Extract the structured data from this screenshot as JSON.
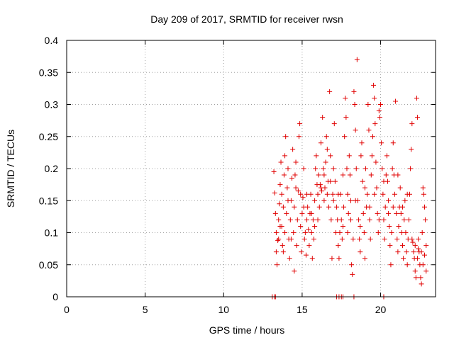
{
  "chart_data": {
    "type": "scatter",
    "title": "Day 209 of 2017, SRMTID for receiver rwsn",
    "xlabel": "GPS time / hours",
    "ylabel": "SRMTID / TECUs",
    "xlim": [
      0,
      23.5
    ],
    "ylim": [
      0,
      0.4
    ],
    "xticks": [
      "0",
      "5",
      "10",
      "15",
      "20"
    ],
    "xtick_values": [
      0,
      5,
      10,
      15,
      20
    ],
    "yticks": [
      "0",
      "0.05",
      "0.1",
      "0.15",
      "0.2",
      "0.25",
      "0.3",
      "0.35",
      "0.4"
    ],
    "ytick_values": [
      0,
      0.05,
      0.1,
      0.15,
      0.2,
      0.25,
      0.3,
      0.35,
      0.4
    ],
    "grid": true,
    "marker": "+",
    "color": "#e00000",
    "series": [
      {
        "name": "SRMTID",
        "points": [
          [
            13.1,
            0.0
          ],
          [
            13.25,
            0.0
          ],
          [
            13.3,
            0.0
          ],
          [
            17.2,
            0.0
          ],
          [
            17.35,
            0.0
          ],
          [
            17.5,
            0.0
          ],
          [
            17.6,
            0.0
          ],
          [
            18.3,
            0.0
          ],
          [
            20.2,
            0.0
          ],
          [
            13.2,
            0.195
          ],
          [
            13.25,
            0.162
          ],
          [
            13.3,
            0.13
          ],
          [
            13.35,
            0.1
          ],
          [
            13.35,
            0.07
          ],
          [
            13.4,
            0.05
          ],
          [
            13.45,
            0.088
          ],
          [
            13.5,
            0.12
          ],
          [
            13.55,
            0.145
          ],
          [
            13.6,
            0.175
          ],
          [
            13.65,
            0.21
          ],
          [
            13.7,
            0.16
          ],
          [
            13.7,
            0.11
          ],
          [
            13.75,
            0.08
          ],
          [
            13.8,
            0.14
          ],
          [
            13.85,
            0.19
          ],
          [
            13.9,
            0.22
          ],
          [
            13.95,
            0.25
          ],
          [
            13.9,
            0.1
          ],
          [
            14.0,
            0.13
          ],
          [
            14.05,
            0.17
          ],
          [
            14.1,
            0.2
          ],
          [
            14.15,
            0.09
          ],
          [
            14.2,
            0.06
          ],
          [
            14.25,
            0.12
          ],
          [
            14.3,
            0.15
          ],
          [
            14.35,
            0.185
          ],
          [
            14.4,
            0.23
          ],
          [
            14.45,
            0.1
          ],
          [
            14.5,
            0.04
          ],
          [
            14.5,
            0.14
          ],
          [
            14.55,
            0.19
          ],
          [
            14.6,
            0.21
          ],
          [
            14.65,
            0.08
          ],
          [
            14.7,
            0.12
          ],
          [
            14.75,
            0.165
          ],
          [
            14.8,
            0.25
          ],
          [
            14.85,
            0.27
          ],
          [
            14.9,
            0.11
          ],
          [
            14.95,
            0.07
          ],
          [
            15.0,
            0.13
          ],
          [
            15.05,
            0.155
          ],
          [
            15.1,
            0.2
          ],
          [
            15.15,
            0.09
          ],
          [
            15.2,
            0.1
          ],
          [
            15.25,
            0.065
          ],
          [
            15.3,
            0.12
          ],
          [
            15.35,
            0.14
          ],
          [
            15.4,
            0.105
          ],
          [
            15.45,
            0.08
          ],
          [
            15.5,
            0.13
          ],
          [
            15.55,
            0.16
          ],
          [
            15.6,
            0.1
          ],
          [
            15.65,
            0.06
          ],
          [
            15.7,
            0.12
          ],
          [
            15.75,
            0.09
          ],
          [
            15.8,
            0.15
          ],
          [
            15.85,
            0.2
          ],
          [
            15.9,
            0.22
          ],
          [
            15.95,
            0.175
          ],
          [
            16.0,
            0.16
          ],
          [
            16.05,
            0.19
          ],
          [
            16.1,
            0.14
          ],
          [
            16.15,
            0.175
          ],
          [
            16.2,
            0.24
          ],
          [
            16.25,
            0.165
          ],
          [
            16.3,
            0.28
          ],
          [
            16.35,
            0.2
          ],
          [
            16.4,
            0.15
          ],
          [
            16.45,
            0.17
          ],
          [
            16.5,
            0.21
          ],
          [
            16.55,
            0.25
          ],
          [
            16.6,
            0.23
          ],
          [
            16.65,
            0.18
          ],
          [
            16.7,
            0.14
          ],
          [
            16.75,
            0.32
          ],
          [
            16.8,
            0.22
          ],
          [
            16.85,
            0.12
          ],
          [
            16.9,
            0.06
          ],
          [
            16.95,
            0.16
          ],
          [
            17.0,
            0.2
          ],
          [
            17.05,
            0.27
          ],
          [
            17.1,
            0.18
          ],
          [
            17.15,
            0.1
          ],
          [
            17.2,
            0.14
          ],
          [
            17.25,
            0.12
          ],
          [
            17.3,
            0.08
          ],
          [
            17.35,
            0.06
          ],
          [
            17.4,
            0.1
          ],
          [
            17.45,
            0.16
          ],
          [
            17.5,
            0.12
          ],
          [
            17.55,
            0.09
          ],
          [
            17.6,
            0.11
          ],
          [
            17.65,
            0.14
          ],
          [
            17.7,
            0.25
          ],
          [
            17.75,
            0.31
          ],
          [
            17.8,
            0.28
          ],
          [
            17.85,
            0.2
          ],
          [
            17.9,
            0.16
          ],
          [
            17.95,
            0.13
          ],
          [
            18.0,
            0.22
          ],
          [
            18.05,
            0.19
          ],
          [
            18.1,
            0.15
          ],
          [
            18.15,
            0.05
          ],
          [
            18.2,
            0.035
          ],
          [
            18.25,
            0.09
          ],
          [
            18.3,
            0.32
          ],
          [
            18.35,
            0.3
          ],
          [
            18.4,
            0.26
          ],
          [
            18.45,
            0.2
          ],
          [
            18.5,
            0.37
          ],
          [
            18.55,
            0.15
          ],
          [
            18.6,
            0.12
          ],
          [
            18.65,
            0.09
          ],
          [
            18.7,
            0.07
          ],
          [
            18.75,
            0.22
          ],
          [
            18.8,
            0.24
          ],
          [
            18.85,
            0.18
          ],
          [
            18.9,
            0.13
          ],
          [
            18.95,
            0.1
          ],
          [
            19.0,
            0.06
          ],
          [
            19.05,
            0.2
          ],
          [
            19.1,
            0.14
          ],
          [
            19.15,
            0.16
          ],
          [
            19.2,
            0.3
          ],
          [
            19.25,
            0.26
          ],
          [
            19.3,
            0.12
          ],
          [
            19.35,
            0.09
          ],
          [
            19.4,
            0.19
          ],
          [
            19.45,
            0.22
          ],
          [
            19.5,
            0.25
          ],
          [
            19.55,
            0.33
          ],
          [
            19.6,
            0.31
          ],
          [
            19.65,
            0.27
          ],
          [
            19.7,
            0.21
          ],
          [
            19.75,
            0.17
          ],
          [
            19.8,
            0.13
          ],
          [
            19.85,
            0.1
          ],
          [
            19.9,
            0.29
          ],
          [
            19.95,
            0.28
          ],
          [
            20.0,
            0.3
          ],
          [
            20.05,
            0.24
          ],
          [
            20.1,
            0.2
          ],
          [
            20.15,
            0.16
          ],
          [
            20.2,
            0.12
          ],
          [
            20.25,
            0.09
          ],
          [
            20.3,
            0.14
          ],
          [
            20.35,
            0.19
          ],
          [
            20.4,
            0.22
          ],
          [
            20.45,
            0.18
          ],
          [
            20.5,
            0.15
          ],
          [
            20.55,
            0.11
          ],
          [
            20.6,
            0.08
          ],
          [
            20.65,
            0.05
          ],
          [
            20.7,
            0.1
          ],
          [
            20.75,
            0.2
          ],
          [
            20.8,
            0.24
          ],
          [
            20.85,
            0.19
          ],
          [
            20.9,
            0.16
          ],
          [
            20.95,
            0.305
          ],
          [
            21.0,
            0.13
          ],
          [
            21.05,
            0.09
          ],
          [
            21.1,
            0.07
          ],
          [
            21.15,
            0.11
          ],
          [
            21.2,
            0.14
          ],
          [
            21.25,
            0.17
          ],
          [
            21.3,
            0.13
          ],
          [
            21.35,
            0.1
          ],
          [
            21.4,
            0.08
          ],
          [
            21.45,
            0.06
          ],
          [
            21.5,
            0.12
          ],
          [
            21.55,
            0.15
          ],
          [
            21.6,
            0.1
          ],
          [
            21.65,
            0.07
          ],
          [
            21.7,
            0.05
          ],
          [
            21.75,
            0.09
          ],
          [
            21.8,
            0.12
          ],
          [
            21.85,
            0.16
          ],
          [
            21.9,
            0.2
          ],
          [
            21.95,
            0.23
          ],
          [
            22.0,
            0.27
          ],
          [
            22.05,
            0.085
          ],
          [
            22.1,
            0.07
          ],
          [
            22.15,
            0.06
          ],
          [
            22.2,
            0.04
          ],
          [
            22.25,
            0.03
          ],
          [
            22.3,
            0.31
          ],
          [
            22.35,
            0.28
          ],
          [
            22.4,
            0.09
          ],
          [
            22.45,
            0.07
          ],
          [
            22.5,
            0.05
          ],
          [
            22.55,
            0.03
          ],
          [
            22.6,
            0.02
          ],
          [
            22.65,
            0.1
          ],
          [
            22.7,
            0.17
          ],
          [
            22.75,
            0.16
          ],
          [
            22.8,
            0.14
          ],
          [
            22.85,
            0.12
          ],
          [
            22.9,
            0.08
          ],
          [
            22.35,
            0.06
          ],
          [
            13.5,
            0.09
          ],
          [
            13.6,
            0.11
          ],
          [
            13.8,
            0.07
          ],
          [
            14.1,
            0.15
          ],
          [
            14.3,
            0.09
          ],
          [
            14.6,
            0.17
          ],
          [
            14.9,
            0.16
          ],
          [
            15.1,
            0.14
          ],
          [
            15.3,
            0.16
          ],
          [
            15.6,
            0.13
          ],
          [
            15.8,
            0.11
          ],
          [
            16.0,
            0.12
          ],
          [
            16.2,
            0.17
          ],
          [
            16.4,
            0.19
          ],
          [
            16.6,
            0.16
          ],
          [
            16.8,
            0.18
          ],
          [
            17.0,
            0.15
          ],
          [
            17.3,
            0.16
          ],
          [
            17.6,
            0.19
          ],
          [
            17.9,
            0.1
          ],
          [
            18.1,
            0.12
          ],
          [
            18.4,
            0.15
          ],
          [
            18.7,
            0.11
          ],
          [
            19.0,
            0.17
          ],
          [
            19.3,
            0.14
          ],
          [
            19.6,
            0.16
          ],
          [
            19.9,
            0.12
          ],
          [
            20.2,
            0.18
          ],
          [
            20.5,
            0.13
          ],
          [
            20.8,
            0.14
          ],
          [
            21.1,
            0.19
          ],
          [
            21.4,
            0.14
          ],
          [
            21.7,
            0.16
          ],
          [
            22.0,
            0.09
          ],
          [
            22.2,
            0.08
          ],
          [
            22.4,
            0.075
          ],
          [
            22.6,
            0.07
          ],
          [
            22.7,
            0.05
          ],
          [
            22.8,
            0.065
          ],
          [
            22.9,
            0.04
          ]
        ]
      }
    ]
  }
}
